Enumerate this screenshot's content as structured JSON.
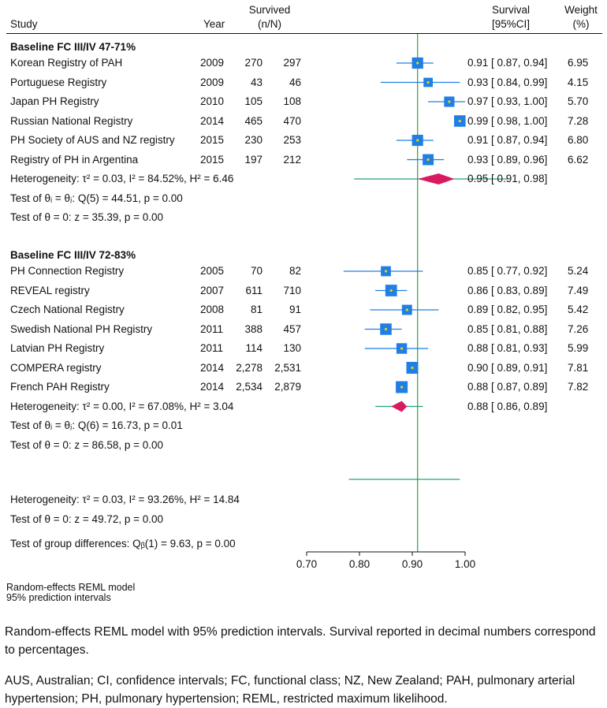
{
  "headers": {
    "study": "Study",
    "year": "Year",
    "survived_line1": "Survived",
    "survived_line2": "(n/N)",
    "survival_line1": "Survival",
    "survival_line2": "[95%CI]",
    "weight_line1": "Weight",
    "weight_line2": "(%)"
  },
  "groups": [
    {
      "title": "Baseline FC III/IV 47-71%",
      "studies": [
        {
          "name": "Korean Registry of PAH",
          "year": "2009",
          "n": "270",
          "N": "297",
          "est": 0.91,
          "lo": 0.87,
          "hi": 0.94,
          "text": "0.91 [ 0.87, 0.94]",
          "weight": "6.95"
        },
        {
          "name": "Portuguese Registry",
          "year": "2009",
          "n": "43",
          "N": "46",
          "est": 0.93,
          "lo": 0.84,
          "hi": 0.99,
          "text": "0.93 [ 0.84, 0.99]",
          "weight": "4.15"
        },
        {
          "name": "Japan PH Registry",
          "year": "2010",
          "n": "105",
          "N": "108",
          "est": 0.97,
          "lo": 0.93,
          "hi": 1.0,
          "text": "0.97 [ 0.93, 1.00]",
          "weight": "5.70"
        },
        {
          "name": "Russian National Registry",
          "year": "2014",
          "n": "465",
          "N": "470",
          "est": 0.99,
          "lo": 0.98,
          "hi": 1.0,
          "text": "0.99 [ 0.98, 1.00]",
          "weight": "7.28"
        },
        {
          "name": "PH Society of AUS and NZ registry",
          "year": "2015",
          "n": "230",
          "N": "253",
          "est": 0.91,
          "lo": 0.87,
          "hi": 0.94,
          "text": "0.91 [ 0.87, 0.94]",
          "weight": "6.80"
        },
        {
          "name": "Registry of PH in Argentina",
          "year": "2015",
          "n": "197",
          "N": "212",
          "est": 0.93,
          "lo": 0.89,
          "hi": 0.96,
          "text": "0.93 [ 0.89, 0.96]",
          "weight": "6.62"
        }
      ],
      "heterogeneity": "Heterogeneity: τ² = 0.03, I² = 84.52%, H² = 6.46",
      "pooled": {
        "est": 0.95,
        "lo": 0.91,
        "hi": 0.98,
        "pi_lo": 0.79,
        "pi_hi": 1.08,
        "text": "0.95 [ 0.91, 0.98]"
      },
      "test_equal": "Test of θᵢ = θⱼ: Q(5) = 44.51, p = 0.00",
      "test_zero": "Test of θ = 0: z = 35.39, p = 0.00"
    },
    {
      "title": "Baseline FC III/IV 72-83%",
      "studies": [
        {
          "name": "PH Connection Registry",
          "year": "2005",
          "n": "70",
          "N": "82",
          "est": 0.85,
          "lo": 0.77,
          "hi": 0.92,
          "text": "0.85 [ 0.77, 0.92]",
          "weight": "5.24"
        },
        {
          "name": "REVEAL registry",
          "year": "2007",
          "n": "611",
          "N": "710",
          "est": 0.86,
          "lo": 0.83,
          "hi": 0.89,
          "text": "0.86 [ 0.83, 0.89]",
          "weight": "7.49"
        },
        {
          "name": "Czech National Registry",
          "year": "2008",
          "n": "81",
          "N": "91",
          "est": 0.89,
          "lo": 0.82,
          "hi": 0.95,
          "text": "0.89 [ 0.82, 0.95]",
          "weight": "5.42"
        },
        {
          "name": "Swedish National PH Registry",
          "year": "2011",
          "n": "388",
          "N": "457",
          "est": 0.85,
          "lo": 0.81,
          "hi": 0.88,
          "text": "0.85 [ 0.81, 0.88]",
          "weight": "7.26"
        },
        {
          "name": "Latvian PH Registry",
          "year": "2011",
          "n": "114",
          "N": "130",
          "est": 0.88,
          "lo": 0.81,
          "hi": 0.93,
          "text": "0.88 [ 0.81, 0.93]",
          "weight": "5.99"
        },
        {
          "name": "COMPERA registry",
          "year": "2014",
          "n": "2,278",
          "N": "2,531",
          "est": 0.9,
          "lo": 0.89,
          "hi": 0.91,
          "text": "0.90 [ 0.89, 0.91]",
          "weight": "7.81"
        },
        {
          "name": "French PAH Registry",
          "year": "2014",
          "n": "2,534",
          "N": "2,879",
          "est": 0.88,
          "lo": 0.87,
          "hi": 0.89,
          "text": "0.88 [ 0.87, 0.89]",
          "weight": "7.82"
        }
      ],
      "heterogeneity": "Heterogeneity: τ² = 0.00, I² = 67.08%, H² = 3.04",
      "pooled": {
        "est": 0.88,
        "lo": 0.86,
        "hi": 0.89,
        "pi_lo": 0.83,
        "pi_hi": 0.92,
        "text": "0.88 [ 0.86, 0.89]"
      },
      "test_equal": "Test of θᵢ = θⱼ: Q(6) = 16.73, p = 0.01",
      "test_zero": "Test of θ = 0: z = 86.58, p = 0.00"
    }
  ],
  "overall": {
    "pi_lo": 0.78,
    "pi_hi": 0.99,
    "est": 0.91,
    "heterogeneity": "Heterogeneity: τ² = 0.03, I² = 93.26%, H² = 14.84",
    "test_zero": "Test of θ = 0: z = 49.72, p = 0.00",
    "test_groups": "Test of group differences: Qᵦ(1) = 9.63, p = 0.00"
  },
  "model_note_line1": "Random-effects REML model",
  "model_note_line2": "95% prediction intervals",
  "caption1": "Random-effects REML model with 95% prediction intervals. Survival reported in decimal numbers correspond to percentages.",
  "caption2": "AUS, Australian; CI, confidence intervals; FC, functional class; NZ, New Zealand; PAH, pulmonary arterial hypertension; PH, pulmonary hypertension; REML, restricted maximum likelihood.",
  "colors": {
    "square": "#1f7fe6",
    "ci_line": "#1f7fe6",
    "diamond": "#d81b60",
    "pi_line": "#22a37a",
    "ref_line": "#2e9e3f",
    "dot": "#f2d200"
  },
  "chart_data": {
    "type": "forest",
    "title": "",
    "xlabel": "",
    "ylabel": "",
    "xlim": [
      0.7,
      1.0
    ],
    "ticks": [
      0.7,
      0.8,
      0.9,
      1.0
    ],
    "tick_labels": [
      "0.70",
      "0.80",
      "0.90",
      "1.00"
    ],
    "reference_line": 0.91
  }
}
